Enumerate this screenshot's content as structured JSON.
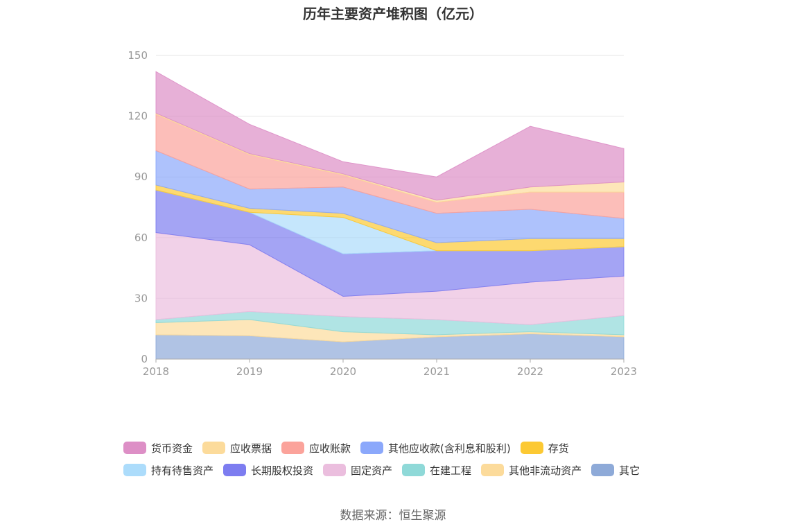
{
  "chart_data": {
    "type": "area",
    "stacked": true,
    "title": "历年主要资产堆积图（亿元）",
    "x": [
      "2018",
      "2019",
      "2020",
      "2021",
      "2022",
      "2023"
    ],
    "ylim": [
      0,
      150
    ],
    "yticks": [
      0,
      30,
      60,
      90,
      120,
      150
    ],
    "grid": true,
    "legend_position": "bottom",
    "series": [
      {
        "name": "其它",
        "color": "#8eaad8",
        "values": [
          12.0,
          11.5,
          8.5,
          11.0,
          12.5,
          11.0
        ]
      },
      {
        "name": "其他非流动资产",
        "color": "#fcdb9b",
        "values": [
          6.0,
          8.0,
          5.0,
          1.0,
          1.0,
          1.0
        ]
      },
      {
        "name": "在建工程",
        "color": "#8fd9d8",
        "values": [
          1.5,
          4.0,
          7.5,
          7.5,
          3.5,
          9.5
        ]
      },
      {
        "name": "固定资产",
        "color": "#ebbede",
        "values": [
          43.0,
          33.0,
          10.0,
          14.0,
          21.0,
          19.5
        ]
      },
      {
        "name": "长期股权投资",
        "color": "#7d7df0",
        "values": [
          21.0,
          16.0,
          21.0,
          20.0,
          15.5,
          14.5
        ]
      },
      {
        "name": "持有待售资产",
        "color": "#acdcfb",
        "values": [
          0.0,
          0.0,
          18.0,
          0.0,
          0.0,
          0.0
        ]
      },
      {
        "name": "存货",
        "color": "#fcc933",
        "values": [
          2.5,
          2.0,
          2.0,
          4.0,
          6.0,
          4.0
        ]
      },
      {
        "name": "其他应收款(含利息和股利)",
        "color": "#8ba8fb",
        "values": [
          17.0,
          9.5,
          13.0,
          14.5,
          14.5,
          10.0
        ]
      },
      {
        "name": "应收账款",
        "color": "#fba39b",
        "values": [
          18.0,
          17.0,
          6.0,
          5.5,
          8.5,
          13.0
        ]
      },
      {
        "name": "应收票据",
        "color": "#fcdb9b",
        "values": [
          0.5,
          0.5,
          0.5,
          1.0,
          2.5,
          5.0
        ]
      },
      {
        "name": "货币资金",
        "color": "#dd8fc6",
        "values": [
          20.5,
          14.5,
          6.0,
          11.5,
          30.0,
          16.5
        ]
      }
    ]
  },
  "legend": [
    {
      "label": "货币资金",
      "color": "#dd8fc6"
    },
    {
      "label": "应收票据",
      "color": "#fcdb9b"
    },
    {
      "label": "应收账款",
      "color": "#fba39b"
    },
    {
      "label": "其他应收款(含利息和股利)",
      "color": "#8ba8fb"
    },
    {
      "label": "存货",
      "color": "#fcc933"
    },
    {
      "label": "持有待售资产",
      "color": "#acdcfb"
    },
    {
      "label": "长期股权投资",
      "color": "#7d7df0"
    },
    {
      "label": "固定资产",
      "color": "#ebbede"
    },
    {
      "label": "在建工程",
      "color": "#8fd9d8"
    },
    {
      "label": "其他非流动资产",
      "color": "#fcdb9b"
    },
    {
      "label": "其它",
      "color": "#8eaad8"
    }
  ],
  "source": "数据来源：恒生聚源"
}
